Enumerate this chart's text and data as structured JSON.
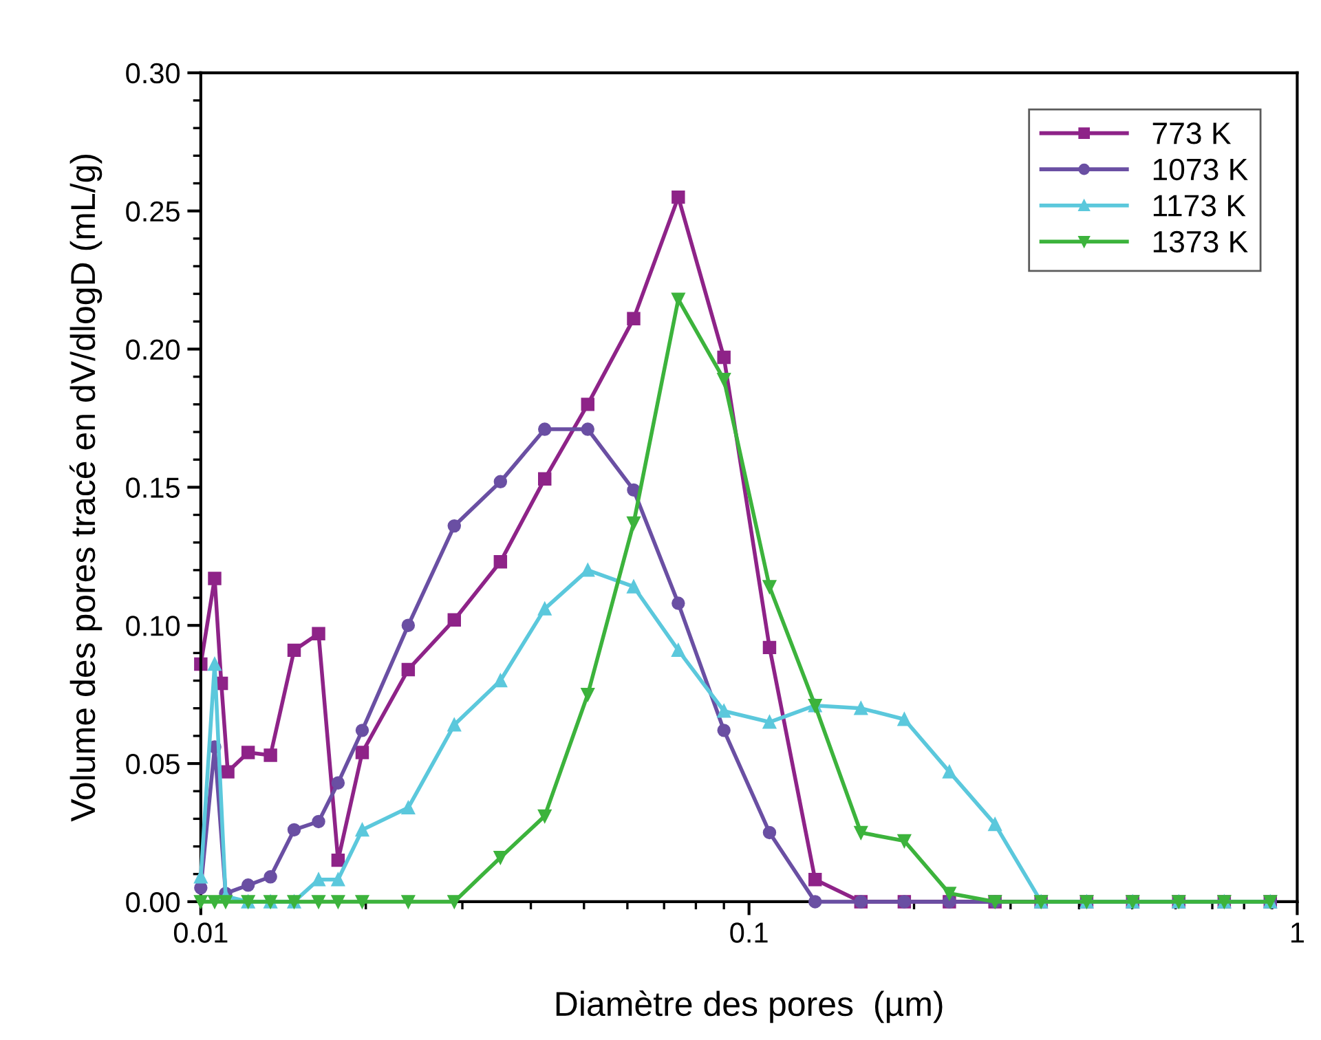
{
  "chart_data": {
    "type": "line",
    "xlabel": "Diamètre des pores  (µm)",
    "ylabel": "Volume des pores tracé en dV/dlogD (mL/g)",
    "log": "x",
    "xlim": [
      0.01,
      1
    ],
    "xticks": [
      0.01,
      0.1,
      1
    ],
    "ylim": [
      0,
      0.3
    ],
    "yticks": [
      {
        "value": 0,
        "label": "0.00"
      },
      {
        "value": 0.05,
        "label": "0.05"
      },
      {
        "value": 0.1,
        "label": "0.10"
      },
      {
        "value": 0.15,
        "label": "0.15"
      },
      {
        "value": 0.2,
        "label": "0.20"
      },
      {
        "value": 0.25,
        "label": "0.25"
      },
      {
        "value": 0.3,
        "label": "0.30"
      }
    ],
    "grid": false,
    "legend": "top right",
    "line_style": "solid",
    "series": [
      {
        "name": "773 K",
        "color": "#8e2388",
        "marker": "square",
        "x": [
          0.01,
          0.0106,
          0.0109,
          0.0112,
          0.0122,
          0.0134,
          0.0148,
          0.0164,
          0.0178,
          0.0197,
          0.0239,
          0.029,
          0.0352,
          0.0424,
          0.0508,
          0.0616,
          0.0743,
          0.09,
          0.109,
          0.132,
          0.16,
          0.192,
          0.232,
          0.281,
          0.341,
          0.413,
          0.501,
          0.608,
          0.736,
          0.893
        ],
        "values": [
          0.086,
          0.117,
          0.079,
          0.047,
          0.054,
          0.053,
          0.091,
          0.097,
          0.015,
          0.054,
          0.084,
          0.102,
          0.123,
          0.153,
          0.18,
          0.211,
          0.255,
          0.197,
          0.092,
          0.008,
          0,
          0,
          0,
          0,
          0,
          0,
          0,
          0,
          0,
          0
        ]
      },
      {
        "name": "1073 K",
        "color": "#6a4fa3",
        "marker": "circle",
        "x": [
          0.01,
          0.0106,
          0.0111,
          0.0122,
          0.0134,
          0.0148,
          0.0164,
          0.0178,
          0.0197,
          0.0239,
          0.029,
          0.0352,
          0.0424,
          0.0508,
          0.0616,
          0.0743,
          0.09,
          0.109,
          0.132,
          0.16,
          0.192,
          0.232,
          0.281,
          0.341,
          0.413,
          0.501,
          0.608,
          0.736,
          0.893
        ],
        "values": [
          0.005,
          0.056,
          0.003,
          0.006,
          0.009,
          0.026,
          0.029,
          0.043,
          0.062,
          0.1,
          0.136,
          0.152,
          0.171,
          0.171,
          0.149,
          0.108,
          0.062,
          0.025,
          0,
          0,
          0,
          0,
          0,
          0,
          0,
          0,
          0,
          0,
          0
        ]
      },
      {
        "name": "1173 K",
        "color": "#5bc8dc",
        "marker": "triangle",
        "x": [
          0.01,
          0.0106,
          0.0111,
          0.0122,
          0.0134,
          0.0148,
          0.0164,
          0.0178,
          0.0197,
          0.0239,
          0.029,
          0.0352,
          0.0424,
          0.0508,
          0.0616,
          0.0743,
          0.09,
          0.109,
          0.132,
          0.16,
          0.192,
          0.232,
          0.281,
          0.341,
          0.413,
          0.501,
          0.608,
          0.736,
          0.893
        ],
        "values": [
          0.009,
          0.086,
          0.002,
          0,
          0,
          0,
          0.008,
          0.008,
          0.026,
          0.034,
          0.064,
          0.08,
          0.106,
          0.12,
          0.114,
          0.091,
          0.069,
          0.065,
          0.071,
          0.07,
          0.066,
          0.047,
          0.028,
          0,
          0,
          0,
          0,
          0,
          0
        ]
      },
      {
        "name": "1373 K",
        "color": "#3cb33c",
        "marker": "triangle-down",
        "x": [
          0.01,
          0.0106,
          0.0111,
          0.0122,
          0.0134,
          0.0148,
          0.0164,
          0.0178,
          0.0197,
          0.0239,
          0.029,
          0.0352,
          0.0424,
          0.0508,
          0.0616,
          0.0743,
          0.09,
          0.109,
          0.132,
          0.16,
          0.192,
          0.232,
          0.281,
          0.341,
          0.413,
          0.501,
          0.608,
          0.736,
          0.893
        ],
        "values": [
          0,
          0,
          0,
          0,
          0,
          0,
          0,
          0,
          0,
          0,
          0,
          0.016,
          0.031,
          0.075,
          0.137,
          0.218,
          0.189,
          0.114,
          0.071,
          0.025,
          0.022,
          0.003,
          0,
          0,
          0,
          0,
          0,
          0,
          0
        ]
      }
    ]
  }
}
